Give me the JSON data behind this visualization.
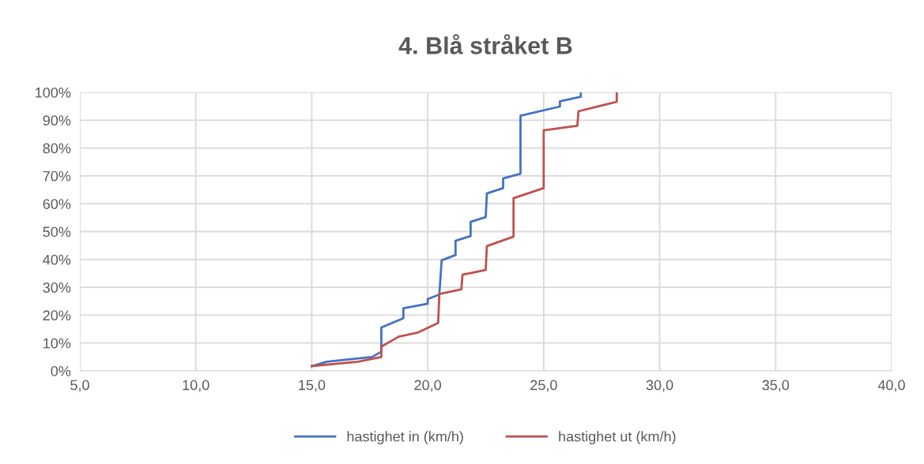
{
  "chart_data": {
    "type": "line",
    "title": "4. Blå stråket B",
    "series": [
      {
        "name": "hastighet in (km/h)",
        "color": "#4472c4",
        "x": [
          15.0,
          15.65,
          17.6,
          18.0,
          18.0,
          18.95,
          18.95,
          20.0,
          20.0,
          20.5,
          20.6,
          21.2,
          21.2,
          21.85,
          21.85,
          22.5,
          22.55,
          23.25,
          23.25,
          24.0,
          24.0,
          25.7,
          25.7,
          26.6,
          26.6
        ],
        "values": [
          1.7,
          3.3,
          5.0,
          6.9,
          15.6,
          18.9,
          22.5,
          24.1,
          25.8,
          27.4,
          39.7,
          41.6,
          46.7,
          48.4,
          53.5,
          55.2,
          63.7,
          65.6,
          69.1,
          70.8,
          91.6,
          94.9,
          96.8,
          98.4,
          100
        ]
      },
      {
        "name": "hastighet ut (km/h)",
        "color": "#c0504d",
        "x": [
          15.0,
          17.0,
          18.0,
          18.0,
          18.75,
          19.55,
          20.45,
          20.5,
          21.45,
          21.5,
          22.5,
          22.55,
          23.7,
          23.7,
          25.0,
          25.0,
          26.45,
          26.5,
          28.15,
          28.15
        ],
        "values": [
          1.7,
          3.3,
          5.0,
          8.7,
          12.3,
          13.7,
          17.2,
          27.6,
          29.3,
          34.5,
          36.2,
          44.8,
          48.2,
          62.0,
          65.6,
          86.4,
          88.0,
          93.2,
          96.6,
          100
        ]
      }
    ],
    "xlim": [
      5,
      40
    ],
    "xticks": [
      {
        "value": 5,
        "label": "5,0"
      },
      {
        "value": 10,
        "label": "10,0"
      },
      {
        "value": 15,
        "label": "15,0"
      },
      {
        "value": 20,
        "label": "20,0"
      },
      {
        "value": 25,
        "label": "25,0"
      },
      {
        "value": 30,
        "label": "30,0"
      },
      {
        "value": 35,
        "label": "35,0"
      },
      {
        "value": 40,
        "label": "40,0"
      }
    ],
    "ylim": [
      0,
      100
    ],
    "yticks": [
      {
        "value": 0,
        "label": "0%"
      },
      {
        "value": 10,
        "label": "10%"
      },
      {
        "value": 20,
        "label": "20%"
      },
      {
        "value": 30,
        "label": "30%"
      },
      {
        "value": 40,
        "label": "40%"
      },
      {
        "value": 50,
        "label": "50%"
      },
      {
        "value": 60,
        "label": "60%"
      },
      {
        "value": 70,
        "label": "70%"
      },
      {
        "value": 80,
        "label": "80%"
      },
      {
        "value": 90,
        "label": "90%"
      },
      {
        "value": 100,
        "label": "100%"
      }
    ],
    "grid": true,
    "legend": "bottom",
    "marker": "none",
    "line_style": "solid"
  }
}
